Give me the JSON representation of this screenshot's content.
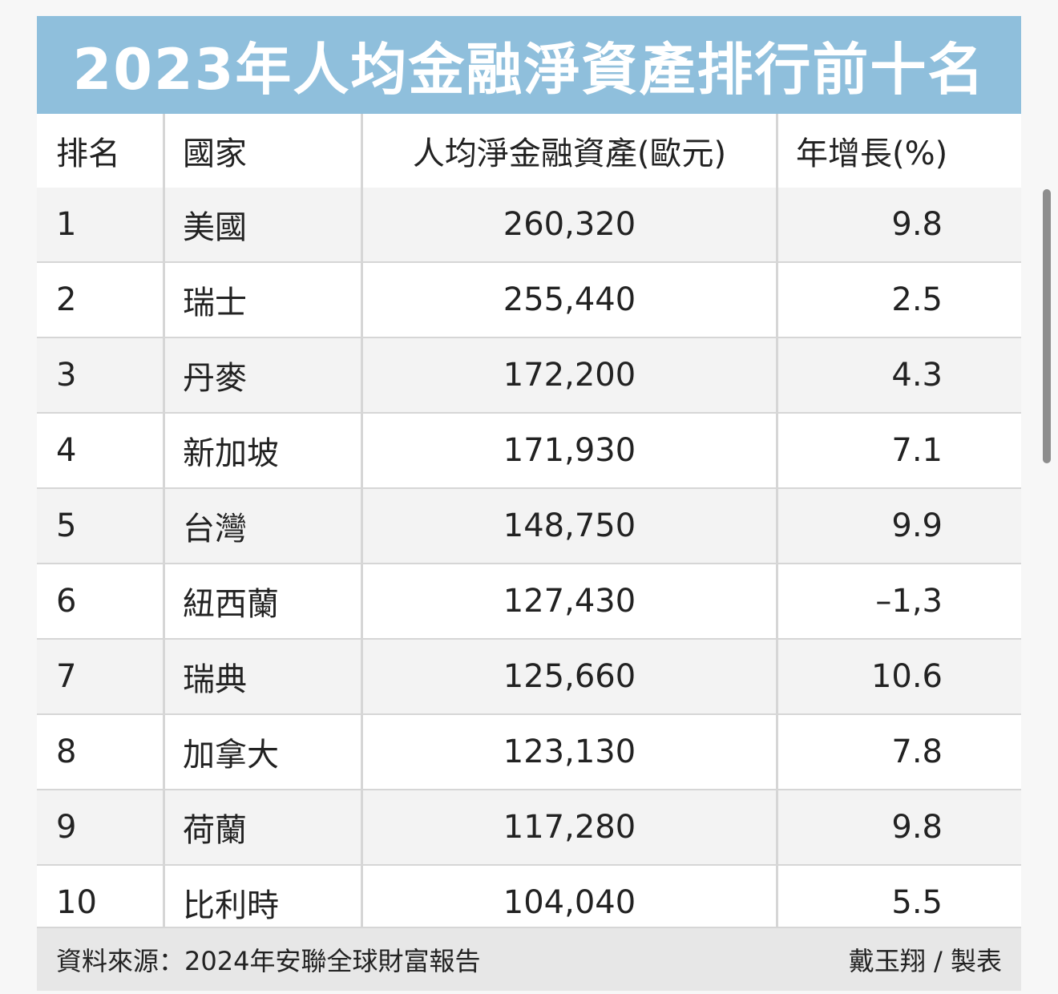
{
  "chart_data": {
    "type": "table",
    "title": "2023年人均金融淨資產排行前十名",
    "columns": [
      "排名",
      "國家",
      "人均淨金融資產(歐元)",
      "年增長(%)"
    ],
    "rows": [
      {
        "rank": "1",
        "country": "美國",
        "assets": "260,320",
        "growth": "9.8"
      },
      {
        "rank": "2",
        "country": "瑞士",
        "assets": "255,440",
        "growth": "2.5"
      },
      {
        "rank": "3",
        "country": "丹麥",
        "assets": "172,200",
        "growth": "4.3"
      },
      {
        "rank": "4",
        "country": "新加坡",
        "assets": "171,930",
        "growth": "7.1"
      },
      {
        "rank": "5",
        "country": "台灣",
        "assets": "148,750",
        "growth": "9.9"
      },
      {
        "rank": "6",
        "country": "紐西蘭",
        "assets": "127,430",
        "growth": "–1,3"
      },
      {
        "rank": "7",
        "country": "瑞典",
        "assets": "125,660",
        "growth": "10.6"
      },
      {
        "rank": "8",
        "country": "加拿大",
        "assets": "123,130",
        "growth": "7.8"
      },
      {
        "rank": "9",
        "country": "荷蘭",
        "assets": "117,280",
        "growth": "9.8"
      },
      {
        "rank": "10",
        "country": "比利時",
        "assets": "104,040",
        "growth": "5.5"
      }
    ],
    "source": "資料來源：2024年安聯全球財富報告",
    "credit": "戴玉翔 / 製表"
  },
  "colors": {
    "title_bar": "#8fbfdc",
    "stripe": "#f3f3f3",
    "footer": "#e7e7e7"
  }
}
